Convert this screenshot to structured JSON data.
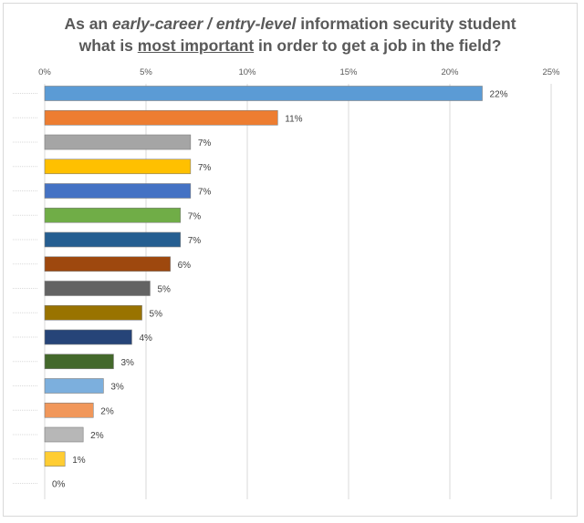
{
  "chart_data": {
    "type": "bar",
    "orientation": "horizontal",
    "title_parts": [
      {
        "text": "As an ",
        "style": "normal"
      },
      {
        "text": "early-career / entry-level",
        "style": "italic"
      },
      {
        "text": " information security student",
        "style": "normal"
      },
      {
        "text": "what is ",
        "style": "normal",
        "newline": true
      },
      {
        "text": "most important",
        "style": "underline"
      },
      {
        "text": " in order to get a job in the field?",
        "style": "normal"
      }
    ],
    "categories": [
      "",
      "",
      "",
      "",
      "",
      "",
      "",
      "",
      "",
      "",
      "",
      "",
      "",
      "",
      "",
      "",
      ""
    ],
    "values": [
      21.6,
      11.5,
      7.2,
      7.2,
      7.2,
      6.7,
      6.7,
      6.2,
      5.2,
      4.8,
      4.3,
      3.4,
      2.9,
      2.4,
      1.9,
      1.0,
      0.0
    ],
    "data_labels": [
      "22%",
      "11%",
      "7%",
      "7%",
      "7%",
      "7%",
      "7%",
      "6%",
      "5%",
      "5%",
      "4%",
      "3%",
      "3%",
      "2%",
      "2%",
      "1%",
      "0%"
    ],
    "colors": [
      "#5b9bd5",
      "#ed7d31",
      "#a5a5a5",
      "#ffc000",
      "#4472c4",
      "#70ad47",
      "#255e91",
      "#9e480e",
      "#636363",
      "#997300",
      "#264478",
      "#43682b",
      "#7cafdd",
      "#f1975a",
      "#b7b7b7",
      "#ffcd33",
      "#698ed0"
    ],
    "xlim": [
      0,
      25
    ],
    "xticks": [
      0,
      5,
      10,
      15,
      20,
      25
    ],
    "xtick_labels": [
      "0%",
      "5%",
      "10%",
      "15%",
      "20%",
      "25%"
    ],
    "x_axis_position": "top",
    "grid": "vertical",
    "legend": "none"
  }
}
